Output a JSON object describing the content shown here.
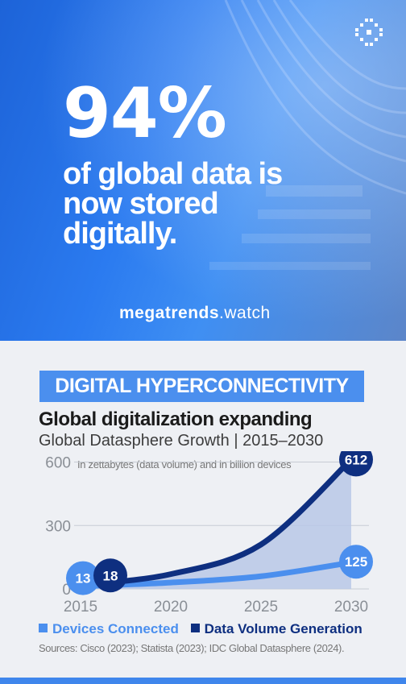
{
  "hero": {
    "stat": "94%",
    "tagline": "of global data is now stored digitally.",
    "brand_bold": "megatrends",
    "brand_rest": ".watch"
  },
  "banner": "DIGITAL HYPERCONNECTIVITY",
  "title": "Global digitalization expanding",
  "subtitle": "Global Datasphere Growth | 2015–2030",
  "colors": {
    "devices": "#4b8fee",
    "data_volume": "#0e2f80",
    "banner": "#4b8fee"
  },
  "source": "Sources: Cisco (2023); Statista (2023); IDC Global Datasphere (2024).",
  "chart_data": {
    "type": "area",
    "note": "In zettabytes  (data volume) and in billion devices",
    "x": [
      2015,
      2020,
      2025,
      2030
    ],
    "x_ticks": [
      "2015",
      "2020",
      "2025",
      "2030"
    ],
    "y_ticks": [
      "0",
      "300",
      "600"
    ],
    "ylim": [
      0,
      640
    ],
    "xlim": [
      2015,
      2030
    ],
    "grid": true,
    "legend": "bottom",
    "series": [
      {
        "name": "Devices Connected",
        "values": [
          13,
          30,
          60,
          125
        ],
        "start_label": "13",
        "end_label": "125"
      },
      {
        "name": "Data Volume Generation",
        "values": [
          18,
          70,
          210,
          612
        ],
        "start_label": "18",
        "end_label": "612"
      }
    ]
  }
}
